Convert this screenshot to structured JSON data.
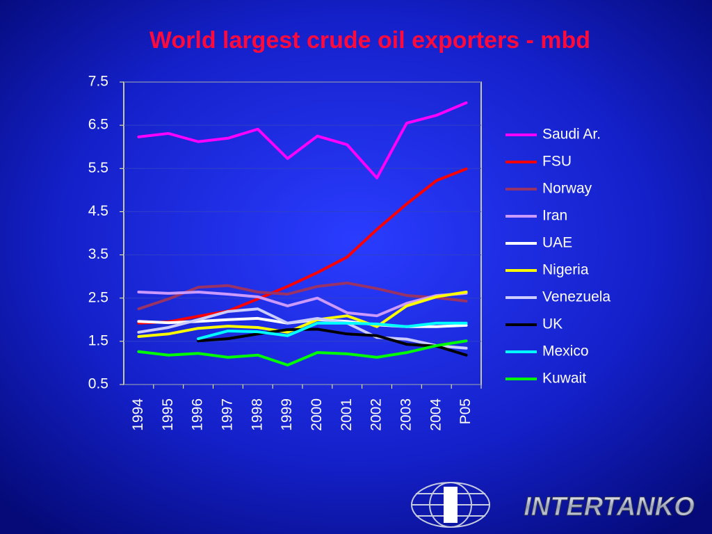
{
  "chart_data": {
    "type": "line",
    "title": "World largest crude oil exporters - mbd",
    "categories": [
      "1994",
      "1995",
      "1996",
      "1997",
      "1998",
      "1999",
      "2000",
      "2001",
      "2002",
      "2003",
      "2004",
      "P05"
    ],
    "ylim": [
      0.5,
      7.5
    ],
    "yticks": [
      0.5,
      1.5,
      2.5,
      3.5,
      4.5,
      5.5,
      6.5,
      7.5
    ],
    "grid": true,
    "legend": "right",
    "series": [
      {
        "name": "Saudi Ar.",
        "color": "#ff00ff",
        "values": [
          6.23,
          6.31,
          6.12,
          6.2,
          6.41,
          5.73,
          6.25,
          6.05,
          5.28,
          6.55,
          6.73,
          7.02
        ]
      },
      {
        "name": "FSU",
        "color": "#ff0000",
        "values": [
          1.92,
          1.95,
          2.08,
          2.2,
          2.48,
          2.77,
          3.09,
          3.45,
          4.09,
          4.68,
          5.22,
          5.49
        ]
      },
      {
        "name": "Norway",
        "color": "#993366",
        "values": [
          2.25,
          2.48,
          2.75,
          2.79,
          2.64,
          2.59,
          2.77,
          2.85,
          2.72,
          2.56,
          2.51,
          2.43
        ]
      },
      {
        "name": "Iran",
        "color": "#cc99ff",
        "values": [
          2.64,
          2.61,
          2.64,
          2.59,
          2.53,
          2.32,
          2.5,
          2.16,
          2.09,
          2.38,
          2.56,
          2.61
        ]
      },
      {
        "name": "UAE",
        "color": "#ffffff",
        "values": [
          1.96,
          1.93,
          1.96,
          2.0,
          2.03,
          1.92,
          2.0,
          1.96,
          1.88,
          1.84,
          1.84,
          1.87
        ]
      },
      {
        "name": "Nigeria",
        "color": "#ffff00",
        "values": [
          1.61,
          1.67,
          1.8,
          1.85,
          1.82,
          1.71,
          2.0,
          2.09,
          1.84,
          2.32,
          2.53,
          2.64
        ]
      },
      {
        "name": "Venezuela",
        "color": "#ccccff",
        "values": [
          1.71,
          1.82,
          2.0,
          2.19,
          2.25,
          1.92,
          2.03,
          1.92,
          1.59,
          1.55,
          1.4,
          1.34
        ]
      },
      {
        "name": "UK",
        "color": "#000000",
        "values": [
          null,
          null,
          1.51,
          1.56,
          1.67,
          1.77,
          1.78,
          1.67,
          1.63,
          1.43,
          1.39,
          1.18
        ]
      },
      {
        "name": "Mexico",
        "color": "#00ffff",
        "values": [
          null,
          null,
          1.56,
          1.74,
          1.72,
          1.63,
          1.92,
          1.92,
          1.9,
          1.84,
          1.92,
          1.92
        ]
      },
      {
        "name": "Kuwait",
        "color": "#00ff00",
        "values": [
          1.26,
          1.18,
          1.22,
          1.13,
          1.18,
          0.95,
          1.24,
          1.21,
          1.13,
          1.24,
          1.4,
          1.51
        ]
      }
    ]
  },
  "logo": "INTERTANKO"
}
